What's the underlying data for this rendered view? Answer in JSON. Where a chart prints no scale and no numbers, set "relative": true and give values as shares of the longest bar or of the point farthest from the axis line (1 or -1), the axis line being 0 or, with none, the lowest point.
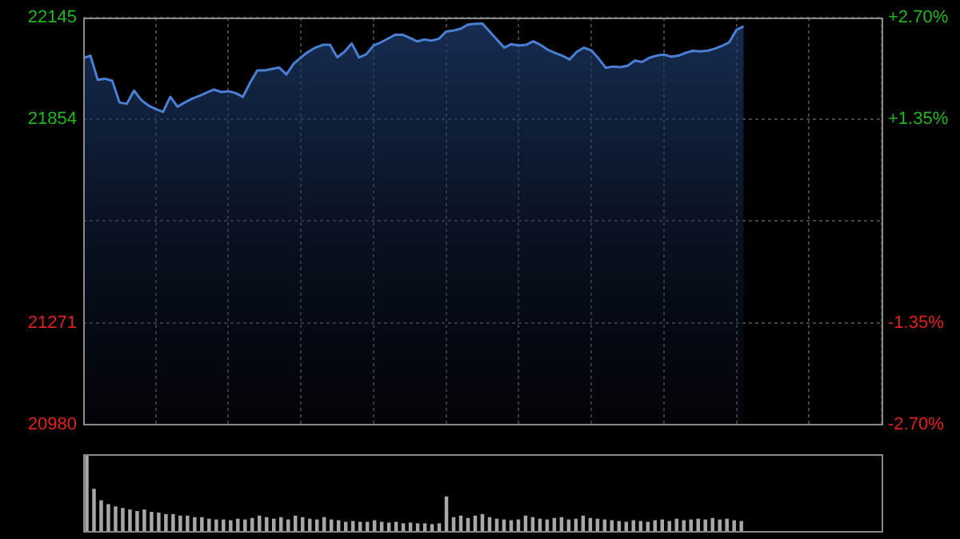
{
  "chart_data": [
    {
      "type": "area",
      "categories": [
        null,
        null,
        null,
        null,
        null,
        null,
        null,
        null,
        null,
        null,
        null,
        null,
        null,
        null,
        null,
        null,
        null,
        null,
        null,
        null,
        null,
        null,
        null,
        null,
        null,
        null,
        null,
        null,
        null,
        null,
        null,
        null,
        null,
        null,
        null,
        null,
        null,
        null,
        null,
        null,
        null,
        null,
        null,
        null,
        null,
        null,
        null,
        null,
        null,
        null,
        null,
        null,
        null,
        null,
        null,
        null,
        null,
        null,
        null,
        null,
        null,
        null,
        null,
        null,
        null,
        null,
        null,
        null,
        null,
        null,
        null,
        null,
        null,
        null,
        null,
        null,
        null,
        null,
        null,
        null,
        null,
        null,
        null,
        null,
        null,
        null,
        null,
        null,
        null,
        null,
        null,
        null,
        null,
        null,
        null,
        null,
        null,
        null,
        null,
        null,
        null,
        null,
        null,
        null,
        null,
        null,
        null,
        null,
        null,
        null,
        null
      ],
      "series": [
        {
          "color": "#4a7fd4",
          "values": [
            22029,
            22036,
            21967,
            21970,
            21964,
            21902,
            21898,
            21936,
            21909,
            21893,
            21883,
            21875,
            21918,
            21890,
            21902,
            21913,
            21921,
            21930,
            21939,
            21932,
            21934,
            21929,
            21918,
            21959,
            21994,
            21994,
            21998,
            22002,
            21982,
            22013,
            22031,
            22047,
            22059,
            22067,
            22067,
            22031,
            22047,
            22071,
            22031,
            22040,
            22065,
            22074,
            22085,
            22096,
            22096,
            22087,
            22077,
            22082,
            22079,
            22084,
            22105,
            22108,
            22113,
            22125,
            22127,
            22128,
            22105,
            22082,
            22059,
            22069,
            22065,
            22067,
            22077,
            22067,
            22053,
            22044,
            22036,
            22025,
            22047,
            22059,
            22051,
            22028,
            22001,
            22005,
            22003,
            22007,
            22022,
            22018,
            22030,
            22036,
            22039,
            22033,
            22036,
            22044,
            22050,
            22048,
            22050,
            22056,
            22064,
            22074,
            22110,
            22120,
            null,
            null,
            null,
            null,
            null,
            null,
            null,
            null,
            null,
            null,
            null,
            null,
            null,
            null,
            null,
            null,
            null,
            null,
            null
          ]
        }
      ],
      "ylim": [
        20980,
        22145
      ],
      "yticks": [
        20980,
        21271,
        {
          "value": 21562.5,
          "label": null
        },
        21854,
        22145
      ],
      "y2lim": [
        -2.7,
        2.7
      ],
      "y2ticks": [
        {
          "value": -2.7,
          "label": "-2.70%"
        },
        {
          "value": -1.35,
          "label": "-1.35%"
        },
        {
          "value": 0,
          "label": null
        },
        {
          "value": 1.35,
          "label": "+1.35%"
        },
        {
          "value": 2.7,
          "label": "+2.70%"
        }
      ],
      "grid": true,
      "legend": false,
      "tick_labels": "y",
      "marker": "none"
    },
    {
      "type": "bar",
      "relative": true,
      "tick_labels": false,
      "legend": false,
      "categories": [
        null,
        null,
        null,
        null,
        null,
        null,
        null,
        null,
        null,
        null,
        null,
        null,
        null,
        null,
        null,
        null,
        null,
        null,
        null,
        null,
        null,
        null,
        null,
        null,
        null,
        null,
        null,
        null,
        null,
        null,
        null,
        null,
        null,
        null,
        null,
        null,
        null,
        null,
        null,
        null,
        null,
        null,
        null,
        null,
        null,
        null,
        null,
        null,
        null,
        null,
        null,
        null,
        null,
        null,
        null,
        null,
        null,
        null,
        null,
        null,
        null,
        null,
        null,
        null,
        null,
        null,
        null,
        null,
        null,
        null,
        null,
        null,
        null,
        null,
        null,
        null,
        null,
        null,
        null,
        null,
        null,
        null,
        null,
        null,
        null,
        null,
        null,
        null,
        null,
        null,
        null,
        null,
        null,
        null,
        null,
        null,
        null,
        null,
        null,
        null,
        null,
        null,
        null,
        null,
        null,
        null,
        null,
        null,
        null,
        null,
        null
      ],
      "color": "#a8a8a8",
      "values": [
        1,
        0.55,
        0.4,
        0.35,
        0.32,
        0.3,
        0.28,
        0.26,
        0.28,
        0.25,
        0.24,
        0.22,
        0.22,
        0.2,
        0.2,
        0.18,
        0.18,
        0.16,
        0.15,
        0.15,
        0.14,
        0.16,
        0.15,
        0.17,
        0.2,
        0.18,
        0.16,
        0.18,
        0.15,
        0.2,
        0.18,
        0.16,
        0.15,
        0.18,
        0.15,
        0.14,
        0.12,
        0.13,
        0.12,
        0.12,
        0.14,
        0.12,
        0.11,
        0.12,
        0.1,
        0.11,
        0.1,
        0.1,
        0.09,
        0.1,
        0.45,
        0.18,
        0.2,
        0.17,
        0.2,
        0.22,
        0.18,
        0.16,
        0.15,
        0.14,
        0.15,
        0.2,
        0.18,
        0.16,
        0.15,
        0.17,
        0.18,
        0.15,
        0.16,
        0.2,
        0.17,
        0.16,
        0.15,
        0.14,
        0.13,
        0.12,
        0.14,
        0.13,
        0.12,
        0.14,
        0.15,
        0.13,
        0.16,
        0.14,
        0.15,
        0.16,
        0.15,
        0.17,
        0.15,
        0.16,
        0.14,
        0.13,
        null,
        null,
        null,
        null,
        null,
        null,
        null,
        null,
        null,
        null,
        null,
        null,
        null,
        null,
        null,
        null,
        null,
        null,
        null
      ]
    }
  ]
}
